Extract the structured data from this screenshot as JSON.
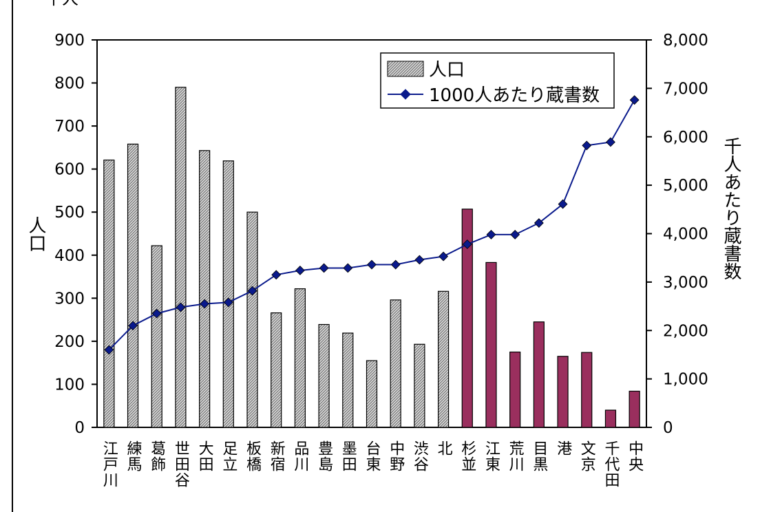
{
  "chart_data": {
    "type": "bar",
    "categories": [
      "江戸川",
      "練馬",
      "葛飾",
      "世田谷",
      "大田",
      "足立",
      "板橋",
      "新宿",
      "品川",
      "豊島",
      "墨田",
      "台東",
      "中野",
      "渋谷",
      "北",
      "杉並",
      "江東",
      "荒川",
      "目黒",
      "港",
      "文京",
      "千代田",
      "中央"
    ],
    "unit_label": "千人",
    "y_left_label": "人口",
    "y_right_label": "千人あたり蔵書数",
    "y_left_ticks": [
      "0",
      "100",
      "200",
      "300",
      "400",
      "500",
      "600",
      "700",
      "800",
      "900"
    ],
    "y_right_ticks": [
      "0",
      "1,000",
      "2,000",
      "3,000",
      "4,000",
      "5,000",
      "6,000",
      "7,000",
      "8,000"
    ],
    "ylim_left": [
      0,
      900
    ],
    "ylim_right": [
      0,
      8000
    ],
    "legend_position": "top-right",
    "grid": false,
    "series": [
      {
        "name": "人口",
        "type": "bar",
        "axis": "left",
        "values": [
          621,
          658,
          422,
          790,
          643,
          619,
          500,
          266,
          322,
          239,
          219,
          155,
          296,
          193,
          316,
          507,
          383,
          175,
          245,
          165,
          174,
          40,
          84
        ],
        "highlight_from_index": 15,
        "color_patterned": "#bcbcbc",
        "color_highlight": "#9a2f5e"
      },
      {
        "name": "1000人あたり蔵書数",
        "type": "line",
        "axis": "right",
        "values": [
          1600,
          2100,
          2350,
          2480,
          2550,
          2580,
          2820,
          3150,
          3240,
          3290,
          3290,
          3360,
          3360,
          3460,
          3530,
          3780,
          3980,
          3980,
          4220,
          4610,
          5820,
          5890,
          6760
        ],
        "color": "#0a1a8c",
        "marker": "diamond"
      }
    ]
  }
}
